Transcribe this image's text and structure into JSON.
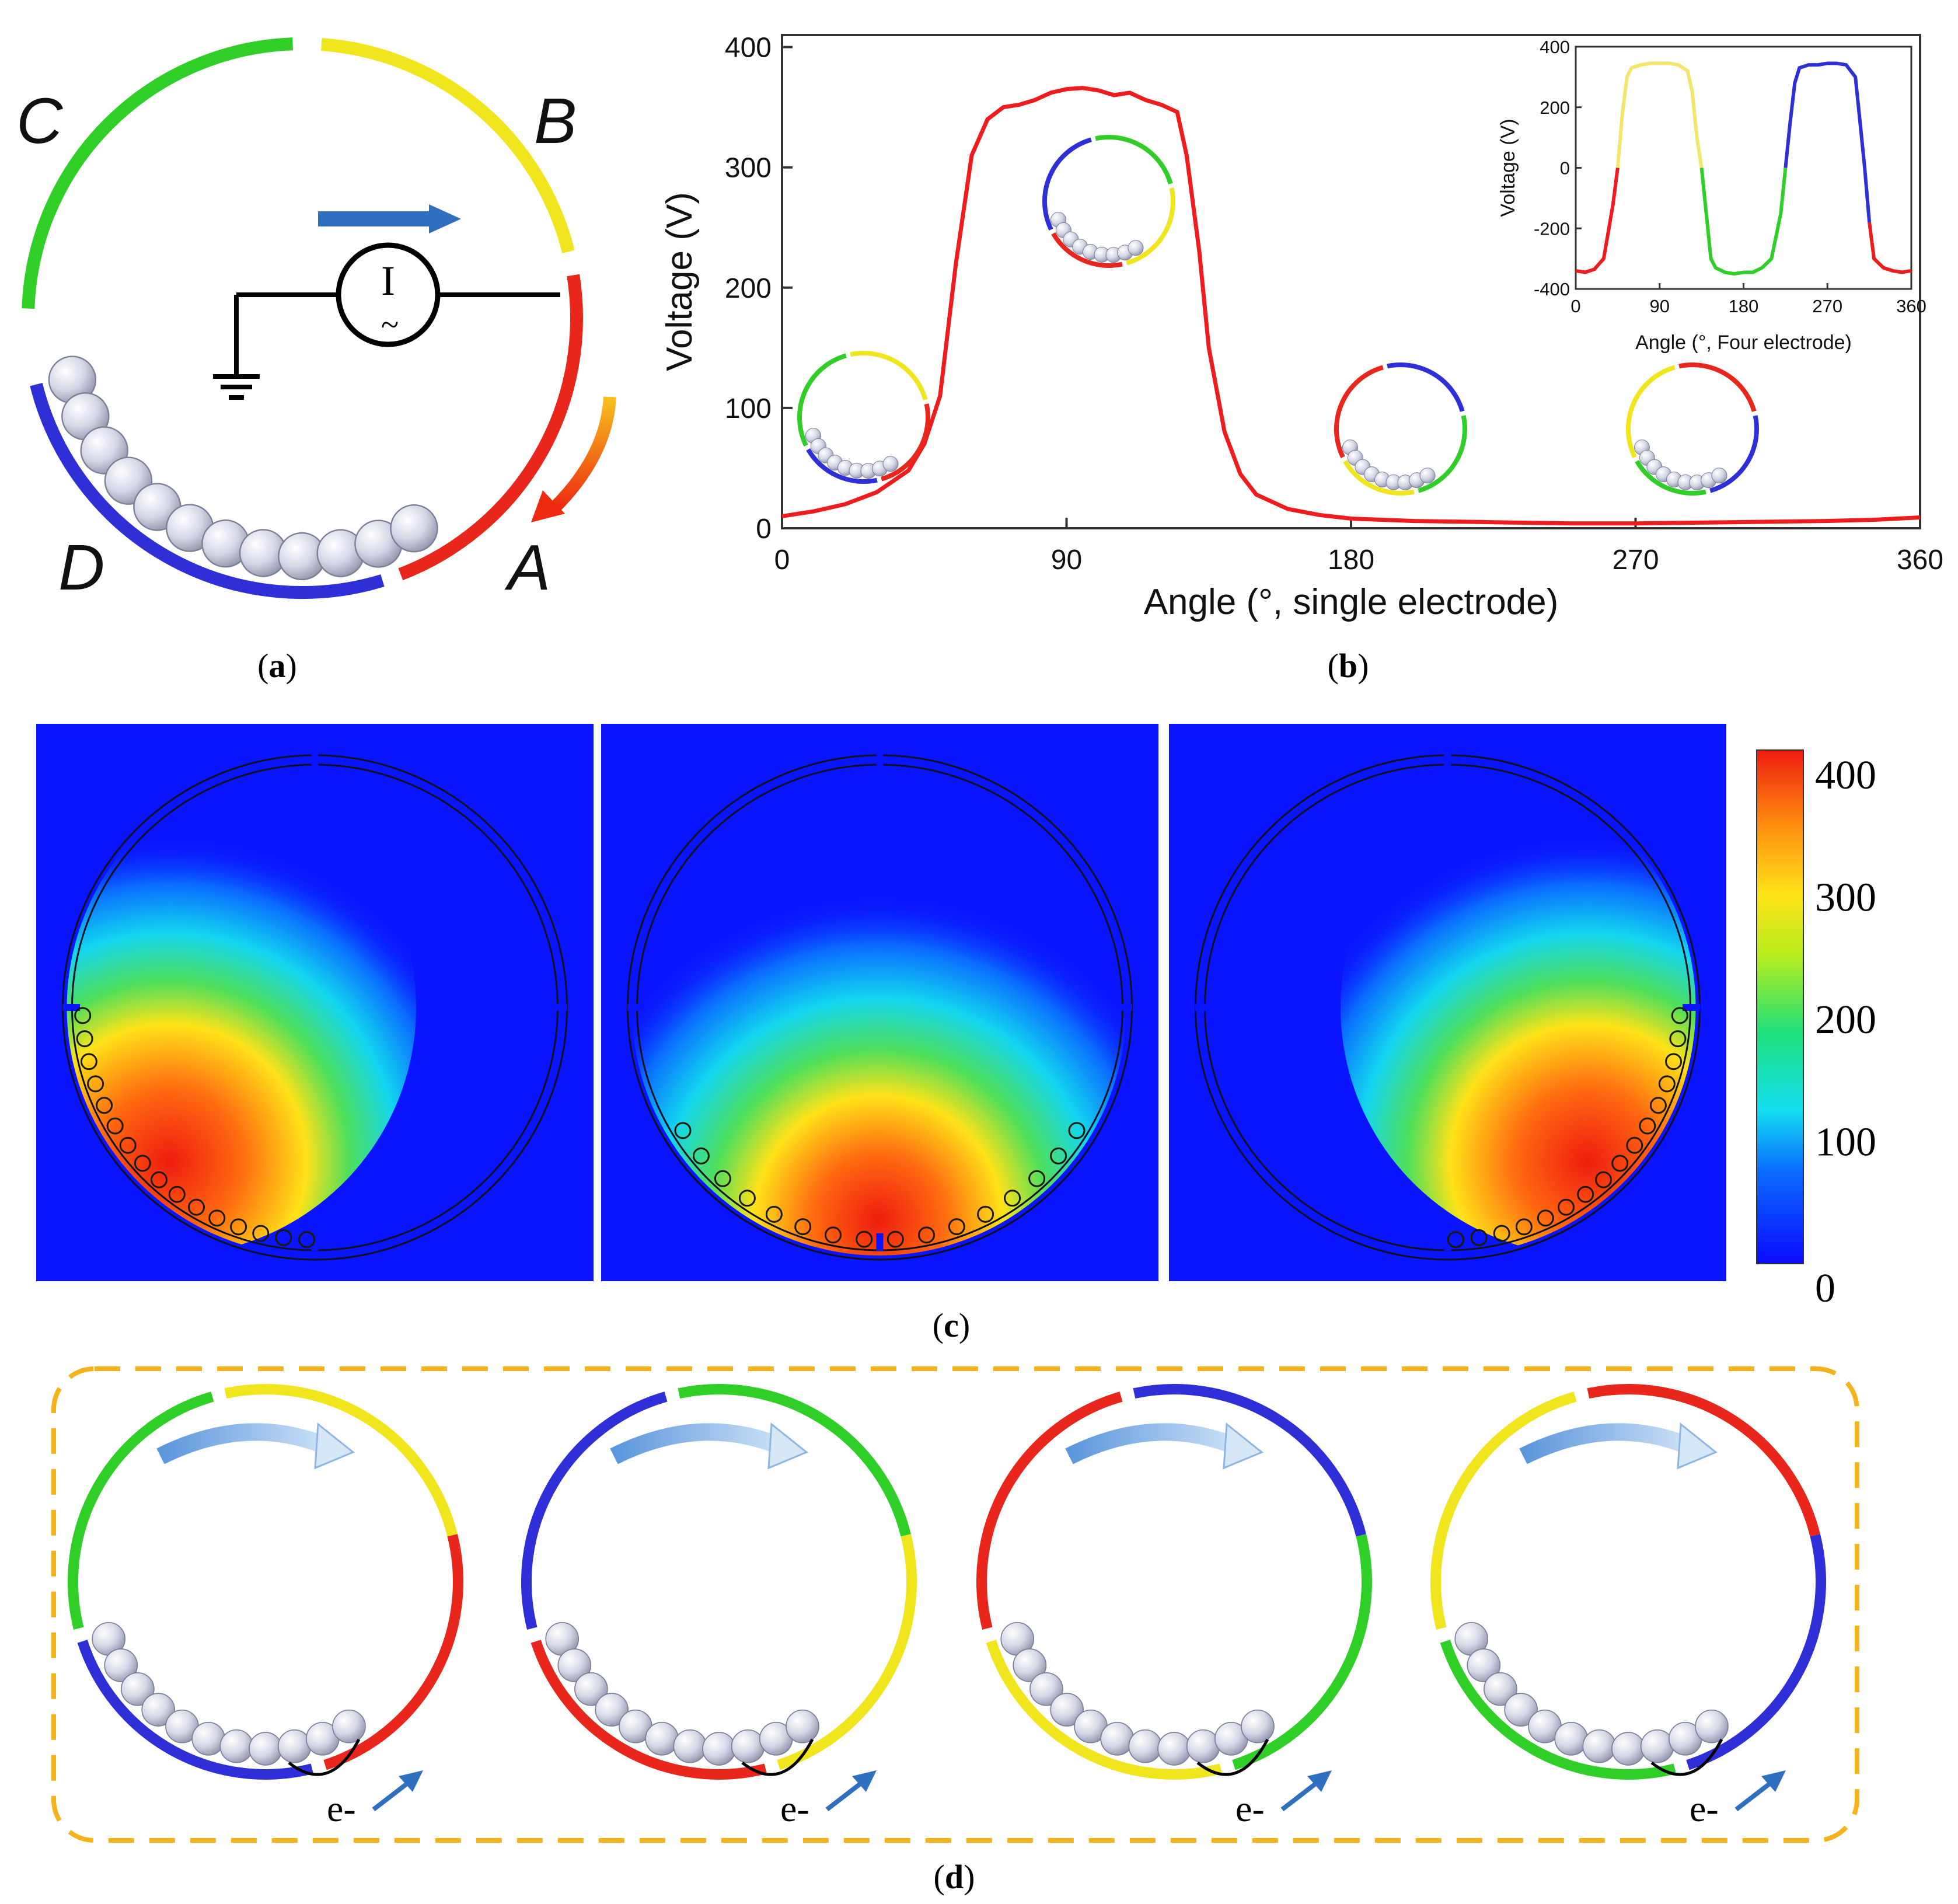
{
  "colors": {
    "red": "#e8261c",
    "yellow": "#f1e51e",
    "green": "#2fcf27",
    "blue": "#2f2fd8",
    "curve": "#ee1c1c",
    "field_bg": "#0a14ff",
    "frame_dash": "#f5b21b",
    "arrow_blue": "#2f6fc0",
    "arrow_orange": "#f07c1a"
  },
  "panel_a": {
    "electrode_labels": [
      "A",
      "B",
      "C",
      "D"
    ],
    "meter_symbol": "I",
    "meter_tilde": "~",
    "caption": "(a)",
    "caption_letter": "a"
  },
  "panel_b": {
    "caption": "(b)",
    "caption_letter": "b",
    "chart_data": [
      {
        "type": "line",
        "title": "",
        "xlabel": "Angle (°, single electrode)",
        "ylabel": "Voltage (V)",
        "xlim": [
          0,
          360
        ],
        "ylim": [
          0,
          410
        ],
        "xticks": [
          "0",
          "90",
          "180",
          "270",
          "360"
        ],
        "yticks": [
          "0",
          "100",
          "200",
          "300",
          "400"
        ],
        "series": [
          {
            "name": "single electrode",
            "color": "#ee1c1c",
            "x": [
              0,
              10,
              20,
              30,
              40,
              45,
              50,
              55,
              60,
              65,
              70,
              75,
              80,
              85,
              90,
              95,
              100,
              105,
              110,
              115,
              120,
              125,
              128,
              132,
              135,
              140,
              145,
              150,
              160,
              170,
              180,
              200,
              225,
              250,
              270,
              300,
              330,
              345,
              360
            ],
            "y": [
              10,
              14,
              20,
              30,
              48,
              70,
              110,
              220,
              310,
              340,
              350,
              352,
              356,
              362,
              365,
              366,
              364,
              360,
              362,
              356,
              352,
              346,
              310,
              230,
              150,
              80,
              45,
              28,
              16,
              11,
              8,
              6,
              5,
              4,
              4,
              5,
              6,
              7,
              9
            ]
          }
        ]
      },
      {
        "type": "line",
        "title": "",
        "xlabel": "Angle (°, Four electrode)",
        "ylabel": "Voltage (V)",
        "xlim": [
          0,
          360
        ],
        "ylim": [
          -400,
          400
        ],
        "xticks": [
          "0",
          "90",
          "180",
          "270",
          "360"
        ],
        "yticks": [
          "-400",
          "-200",
          "0",
          "200",
          "400"
        ],
        "series": [
          {
            "name": "four electrode",
            "x": [
              0,
              10,
              20,
              30,
              40,
              45,
              50,
              55,
              60,
              70,
              80,
              90,
              100,
              110,
              120,
              125,
              130,
              135,
              140,
              145,
              150,
              160,
              170,
              180,
              190,
              200,
              210,
              220,
              225,
              230,
              235,
              240,
              250,
              260,
              270,
              280,
              290,
              300,
              305,
              310,
              315,
              320,
              330,
              340,
              350,
              360
            ],
            "y": [
              -340,
              -345,
              -335,
              -300,
              -120,
              0,
              180,
              300,
              330,
              340,
              345,
              345,
              345,
              340,
              320,
              250,
              100,
              0,
              -150,
              -300,
              -330,
              -345,
              -350,
              -345,
              -345,
              -330,
              -300,
              -150,
              0,
              150,
              280,
              330,
              340,
              340,
              345,
              345,
              340,
              300,
              150,
              0,
              -180,
              -300,
              -330,
              -340,
              -345,
              -340
            ],
            "segment_colors": [
              "#ee1c1c",
              "#f4e66a",
              "#2fcf27",
              "#2f2fd8",
              "#ee1c1c"
            ]
          }
        ]
      }
    ]
  },
  "panel_c": {
    "caption": "(c)",
    "caption_letter": "c",
    "colorbar_ticks": [
      "400",
      "300",
      "200",
      "100",
      "0"
    ],
    "colorbar_range": [
      0,
      420
    ]
  },
  "panel_d": {
    "caption": "(d)",
    "caption_letter": "d",
    "electron_label": "e-"
  }
}
